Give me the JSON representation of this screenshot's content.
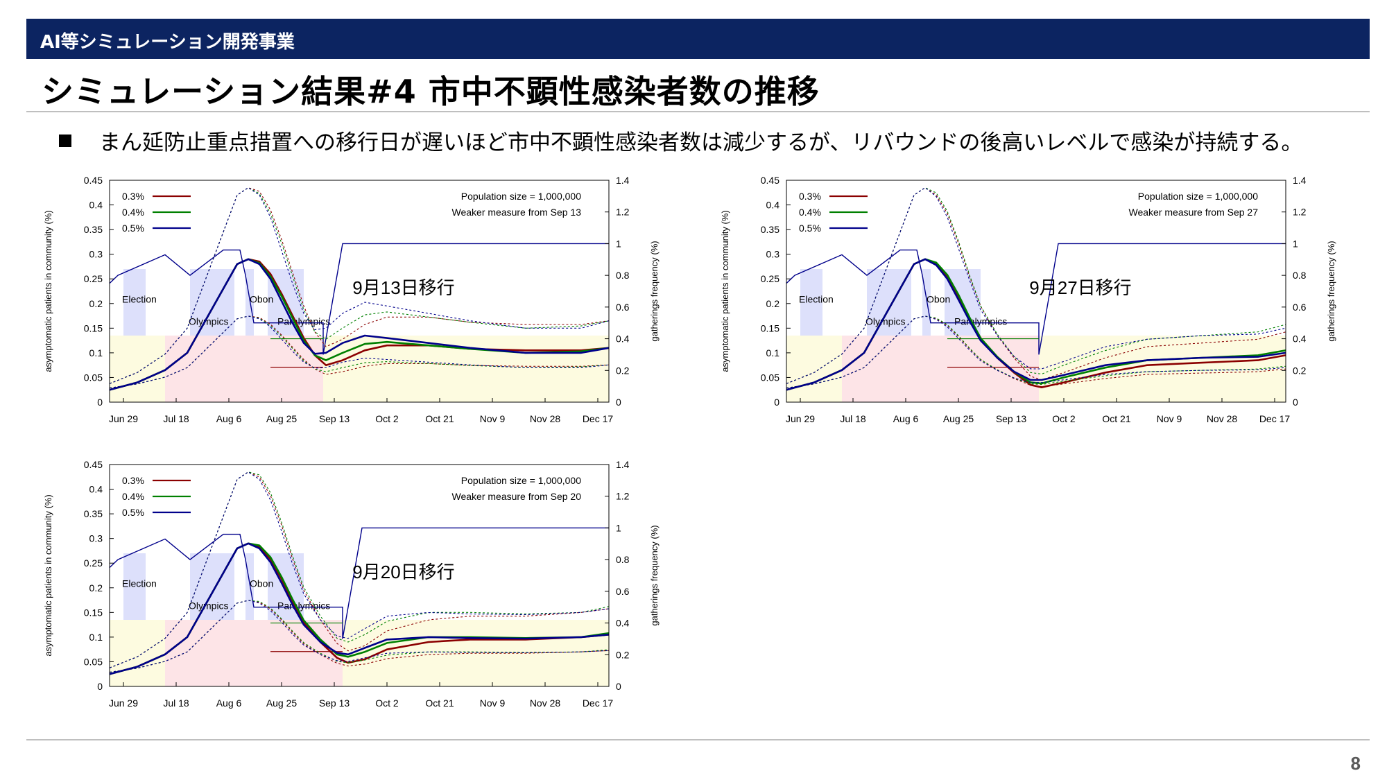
{
  "header": {
    "text": "AI等シミュレーション開発事業"
  },
  "title": "シミュレーション結果#4 市中不顕性感染者数の推移",
  "bullet": "まん延防止重点措置への移行日が遅いほど市中不顕性感染者数は減少するが、リバウンドの後高いレベルで感染が持続する。",
  "page_number": "8",
  "colors": {
    "header_bg": "#0c2461",
    "s03": "#8b0000",
    "s04": "#008000",
    "s05": "#00008b",
    "gather": "#00008b",
    "yellow_zone": "#fdfbe0",
    "pink_zone": "#fde4e7",
    "event_box": "#dde0fb"
  },
  "chart_data": [
    {
      "type": "line",
      "annotation": "9月13日移行",
      "info": [
        "Population size = 1,000,000",
        "Weaker measure from Sep 13"
      ],
      "ylabel": "asymptomatic patients in community (%)",
      "y2label": "gatherings frequency (%)",
      "ylim": [
        0,
        0.45
      ],
      "y2lim": [
        0,
        1.4
      ],
      "yticks": [
        "0",
        "0.05",
        "0.1",
        "0.15",
        "0.2",
        "0.25",
        "0.3",
        "0.35",
        "0.4",
        "0.45"
      ],
      "y2ticks": [
        "0",
        "0.2",
        "0.4",
        "0.6",
        "0.8",
        "1",
        "1.2",
        "1.4"
      ],
      "xticks": [
        "Jun 29",
        "Jul 18",
        "Aug 6",
        "Aug 25",
        "Sep 13",
        "Oct 2",
        "Oct 21",
        "Nov 9",
        "Nov 28",
        "Dec 17"
      ],
      "events": [
        "Election",
        "Olympics",
        "Obon",
        "Paralympics"
      ],
      "switch_day": 77,
      "series": [
        {
          "name": "0.3%",
          "x": [
            0,
            10,
            20,
            28,
            35,
            42,
            46,
            50,
            54,
            58,
            62,
            66,
            70,
            74,
            78,
            84,
            92,
            100,
            115,
            130,
            150,
            170,
            180
          ],
          "y": [
            0.025,
            0.04,
            0.065,
            0.1,
            0.17,
            0.24,
            0.28,
            0.29,
            0.285,
            0.26,
            0.22,
            0.175,
            0.13,
            0.095,
            0.075,
            0.085,
            0.105,
            0.115,
            0.115,
            0.108,
            0.105,
            0.105,
            0.11
          ]
        },
        {
          "name": "0.4%",
          "x": [
            0,
            10,
            20,
            28,
            35,
            42,
            46,
            50,
            54,
            58,
            62,
            66,
            70,
            74,
            78,
            84,
            92,
            100,
            115,
            130,
            150,
            170,
            180
          ],
          "y": [
            0.025,
            0.04,
            0.065,
            0.1,
            0.17,
            0.24,
            0.28,
            0.29,
            0.282,
            0.255,
            0.215,
            0.17,
            0.125,
            0.095,
            0.085,
            0.1,
            0.118,
            0.122,
            0.115,
            0.108,
            0.1,
            0.103,
            0.11
          ]
        },
        {
          "name": "0.5%",
          "x": [
            0,
            10,
            20,
            28,
            35,
            42,
            46,
            50,
            54,
            58,
            62,
            66,
            70,
            74,
            78,
            84,
            92,
            100,
            115,
            130,
            150,
            170,
            180
          ],
          "y": [
            0.025,
            0.04,
            0.065,
            0.1,
            0.17,
            0.24,
            0.28,
            0.29,
            0.28,
            0.25,
            0.205,
            0.16,
            0.12,
            0.098,
            0.1,
            0.12,
            0.135,
            0.13,
            0.12,
            0.11,
            0.1,
            0.1,
            0.11
          ]
        }
      ]
    },
    {
      "type": "line",
      "annotation": "9月27日移行",
      "info": [
        "Population size = 1,000,000",
        "Weaker measure from Sep 27"
      ],
      "ylabel": "asymptomatic patients in community (%)",
      "y2label": "gatherings frequency (%)",
      "ylim": [
        0,
        0.45
      ],
      "y2lim": [
        0,
        1.4
      ],
      "yticks": [
        "0",
        "0.05",
        "0.1",
        "0.15",
        "0.2",
        "0.25",
        "0.3",
        "0.35",
        "0.4",
        "0.45"
      ],
      "y2ticks": [
        "0",
        "0.2",
        "0.4",
        "0.6",
        "0.8",
        "1",
        "1.2",
        "1.4"
      ],
      "xticks": [
        "Jun 29",
        "Jul 18",
        "Aug 6",
        "Aug 25",
        "Sep 13",
        "Oct 2",
        "Oct 21",
        "Nov 9",
        "Nov 28",
        "Dec 17"
      ],
      "events": [
        "Election",
        "Olympics",
        "Obon",
        "Paralympics"
      ],
      "switch_day": 91,
      "series": [
        {
          "name": "0.3%",
          "x": [
            0,
            10,
            20,
            28,
            35,
            42,
            46,
            50,
            54,
            58,
            62,
            66,
            70,
            76,
            82,
            88,
            92,
            100,
            115,
            130,
            150,
            170,
            180
          ],
          "y": [
            0.025,
            0.04,
            0.065,
            0.1,
            0.17,
            0.24,
            0.28,
            0.29,
            0.28,
            0.255,
            0.215,
            0.17,
            0.13,
            0.09,
            0.06,
            0.035,
            0.03,
            0.04,
            0.06,
            0.075,
            0.08,
            0.085,
            0.095
          ]
        },
        {
          "name": "0.4%",
          "x": [
            0,
            10,
            20,
            28,
            35,
            42,
            46,
            50,
            54,
            58,
            62,
            66,
            70,
            76,
            82,
            88,
            92,
            100,
            115,
            130,
            150,
            170,
            180
          ],
          "y": [
            0.025,
            0.04,
            0.065,
            0.1,
            0.17,
            0.24,
            0.28,
            0.29,
            0.283,
            0.258,
            0.218,
            0.172,
            0.13,
            0.092,
            0.062,
            0.04,
            0.038,
            0.05,
            0.07,
            0.085,
            0.09,
            0.095,
            0.105
          ]
        },
        {
          "name": "0.5%",
          "x": [
            0,
            10,
            20,
            28,
            35,
            42,
            46,
            50,
            54,
            58,
            62,
            66,
            70,
            76,
            82,
            88,
            92,
            100,
            115,
            130,
            150,
            170,
            180
          ],
          "y": [
            0.025,
            0.04,
            0.065,
            0.1,
            0.17,
            0.24,
            0.28,
            0.29,
            0.278,
            0.25,
            0.208,
            0.165,
            0.125,
            0.09,
            0.062,
            0.045,
            0.045,
            0.055,
            0.075,
            0.085,
            0.09,
            0.092,
            0.1
          ]
        }
      ]
    },
    {
      "type": "line",
      "annotation": "9月20日移行",
      "info": [
        "Population size = 1,000,000",
        "Weaker measure from Sep 20"
      ],
      "ylabel": "asymptomatic patients in community (%)",
      "y2label": "gatherings frequency (%)",
      "ylim": [
        0,
        0.45
      ],
      "y2lim": [
        0,
        1.4
      ],
      "yticks": [
        "0",
        "0.05",
        "0.1",
        "0.15",
        "0.2",
        "0.25",
        "0.3",
        "0.35",
        "0.4",
        "0.45"
      ],
      "y2ticks": [
        "0",
        "0.2",
        "0.4",
        "0.6",
        "0.8",
        "1",
        "1.2",
        "1.4"
      ],
      "xticks": [
        "Jun 29",
        "Jul 18",
        "Aug 6",
        "Aug 25",
        "Sep 13",
        "Oct 2",
        "Oct 21",
        "Nov 9",
        "Nov 28",
        "Dec 17"
      ],
      "events": [
        "Election",
        "Olympics",
        "Obon",
        "Paralympics"
      ],
      "switch_day": 84,
      "series": [
        {
          "name": "0.3%",
          "x": [
            0,
            10,
            20,
            28,
            35,
            42,
            46,
            50,
            54,
            58,
            62,
            66,
            70,
            76,
            82,
            86,
            92,
            100,
            115,
            130,
            150,
            170,
            180
          ],
          "y": [
            0.025,
            0.04,
            0.065,
            0.1,
            0.17,
            0.24,
            0.28,
            0.29,
            0.283,
            0.258,
            0.218,
            0.172,
            0.13,
            0.09,
            0.058,
            0.048,
            0.055,
            0.075,
            0.09,
            0.095,
            0.095,
            0.1,
            0.105
          ]
        },
        {
          "name": "0.4%",
          "x": [
            0,
            10,
            20,
            28,
            35,
            42,
            46,
            50,
            54,
            58,
            62,
            66,
            70,
            76,
            82,
            86,
            92,
            100,
            115,
            130,
            150,
            170,
            180
          ],
          "y": [
            0.025,
            0.04,
            0.065,
            0.1,
            0.17,
            0.24,
            0.28,
            0.29,
            0.286,
            0.262,
            0.222,
            0.176,
            0.134,
            0.095,
            0.065,
            0.06,
            0.07,
            0.088,
            0.1,
            0.1,
            0.098,
            0.1,
            0.108
          ]
        },
        {
          "name": "0.5%",
          "x": [
            0,
            10,
            20,
            28,
            35,
            42,
            46,
            50,
            54,
            58,
            62,
            66,
            70,
            76,
            82,
            86,
            92,
            100,
            115,
            130,
            150,
            170,
            180
          ],
          "y": [
            0.025,
            0.04,
            0.065,
            0.1,
            0.17,
            0.24,
            0.28,
            0.29,
            0.28,
            0.252,
            0.21,
            0.165,
            0.125,
            0.09,
            0.068,
            0.065,
            0.078,
            0.095,
            0.1,
            0.098,
            0.097,
            0.1,
            0.105
          ]
        }
      ]
    }
  ]
}
